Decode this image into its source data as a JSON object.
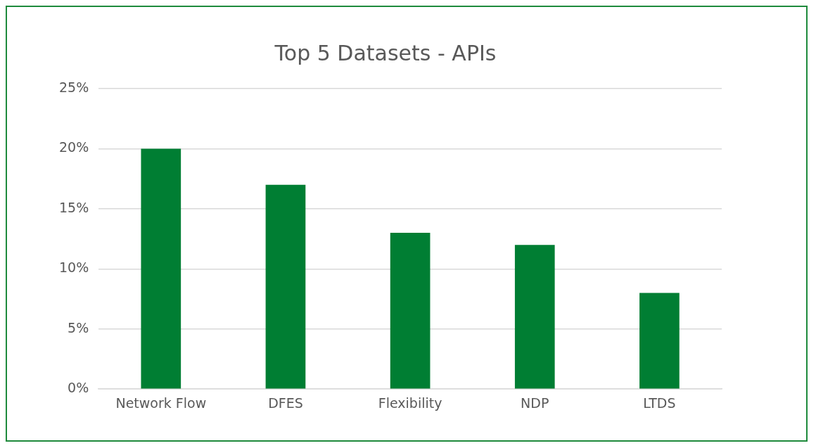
{
  "chart_data": {
    "type": "bar",
    "title": "Top 5 Datasets - APIs",
    "categories": [
      "Network Flow",
      "DFES",
      "Flexibility",
      "NDP",
      "LTDS"
    ],
    "values": [
      20,
      17,
      13,
      12,
      8
    ],
    "color": "#007e33",
    "ylim": [
      0,
      25
    ],
    "yticks": [
      {
        "value": 0,
        "label": "0%"
      },
      {
        "value": 5,
        "label": "5%"
      },
      {
        "value": 10,
        "label": "10%"
      },
      {
        "value": 15,
        "label": "15%"
      },
      {
        "value": 20,
        "label": "20%"
      },
      {
        "value": 25,
        "label": "25%"
      }
    ],
    "grid": "y"
  }
}
